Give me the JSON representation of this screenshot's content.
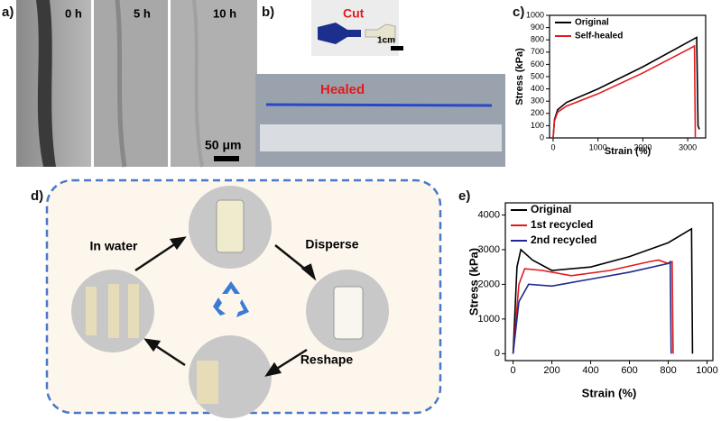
{
  "panels": {
    "a": {
      "label": "a)",
      "images": [
        "0 h",
        "5 h",
        "10 h"
      ],
      "scale_bar": "50 μm"
    },
    "b": {
      "label": "b)",
      "cut": "Cut",
      "scale_bar": "1cm",
      "healed": "Healed"
    },
    "d": {
      "label": "d)",
      "steps": [
        "In water",
        "Disperse",
        "Reshape"
      ]
    }
  },
  "chart_data": [
    {
      "type": "line",
      "label": "c)",
      "x_label": "Strain (%)",
      "y_label": "Stress (kPa)",
      "xlim": [
        -80,
        3400
      ],
      "ylim": [
        0,
        1000
      ],
      "xticks": [
        0,
        1000,
        2000,
        3000
      ],
      "yticks": [
        0,
        100,
        200,
        300,
        400,
        500,
        600,
        700,
        800,
        900,
        1000
      ],
      "legend": "upper left",
      "series": [
        {
          "name": "Original",
          "color": "#000000",
          "x": [
            0,
            30,
            100,
            300,
            1000,
            2000,
            3000,
            3200,
            3230,
            3260
          ],
          "values": [
            0,
            150,
            230,
            290,
            400,
            580,
            780,
            820,
            100,
            70
          ]
        },
        {
          "name": "Self-healed",
          "color": "#e31a1c",
          "x": [
            0,
            30,
            100,
            300,
            1000,
            2000,
            3000,
            3150,
            3170
          ],
          "values": [
            0,
            140,
            210,
            260,
            360,
            530,
            720,
            750,
            0
          ]
        }
      ]
    },
    {
      "type": "line",
      "label": "e)",
      "x_label": "Strain (%)",
      "y_label": "Stress (kPa)",
      "xlim": [
        -40,
        1030
      ],
      "ylim": [
        -200,
        4350
      ],
      "xticks": [
        0,
        200,
        400,
        600,
        800,
        1000
      ],
      "yticks": [
        0,
        1000,
        2000,
        3000,
        4000
      ],
      "legend": "upper left",
      "series": [
        {
          "name": "Original",
          "color": "#000000",
          "x": [
            0,
            20,
            40,
            100,
            200,
            400,
            600,
            800,
            920,
            925
          ],
          "values": [
            0,
            2500,
            3000,
            2700,
            2400,
            2500,
            2800,
            3200,
            3600,
            0
          ]
        },
        {
          "name": "1st recycled",
          "color": "#e31a1c",
          "x": [
            0,
            30,
            60,
            150,
            300,
            500,
            700,
            750,
            800,
            820,
            825
          ],
          "values": [
            0,
            2000,
            2450,
            2400,
            2250,
            2400,
            2650,
            2700,
            2600,
            2650,
            0
          ]
        },
        {
          "name": "2nd recycled",
          "color": "#1f2a8c",
          "x": [
            0,
            30,
            80,
            200,
            400,
            600,
            800,
            810,
            815
          ],
          "values": [
            0,
            1500,
            2000,
            1950,
            2150,
            2350,
            2600,
            2650,
            0
          ]
        }
      ]
    }
  ]
}
